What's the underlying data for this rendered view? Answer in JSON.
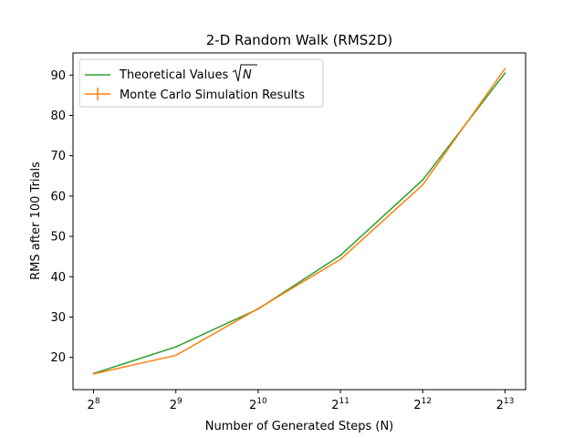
{
  "chart_data": {
    "type": "line",
    "title": "2-D Random Walk (RMS2D)",
    "xlabel": "Number of Generated Steps (N)",
    "ylabel": "RMS after 100 Trials",
    "x": [
      256,
      512,
      1024,
      2048,
      4096,
      8192
    ],
    "x_tick_labels": [
      {
        "base": "2",
        "exp": "8"
      },
      {
        "base": "2",
        "exp": "9"
      },
      {
        "base": "2",
        "exp": "10"
      },
      {
        "base": "2",
        "exp": "11"
      },
      {
        "base": "2",
        "exp": "12"
      },
      {
        "base": "2",
        "exp": "13"
      }
    ],
    "x_scale": "log2",
    "ylim": [
      12,
      95.5
    ],
    "y_ticks": [
      20,
      30,
      40,
      50,
      60,
      70,
      80,
      90
    ],
    "grid": false,
    "legend_position": "top-left",
    "series": [
      {
        "name": "Theoretical Values√N",
        "name_prefix": "Theoretical Values",
        "name_math": "N",
        "color": "#2ca02c",
        "values": [
          16.0,
          22.6,
          32.0,
          45.3,
          64.0,
          90.5
        ]
      },
      {
        "name": "Monte Carlo Simulation Results",
        "color": "#ff7f0e",
        "errorbars": true,
        "values": [
          15.9,
          20.5,
          32.1,
          44.3,
          62.8,
          91.6
        ]
      }
    ]
  }
}
